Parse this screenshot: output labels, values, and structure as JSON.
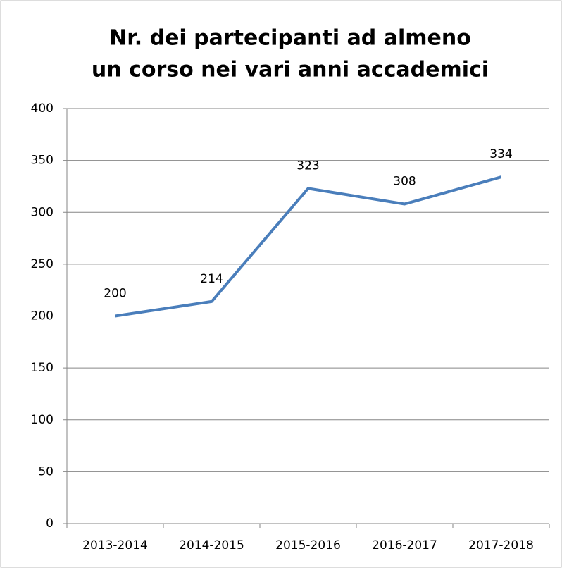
{
  "chart_data": {
    "type": "line",
    "title": [
      "Nr. dei partecipanti ad almeno",
      "un corso nei vari anni accademici"
    ],
    "categories": [
      "2013-2014",
      "2014-2015",
      "2015-2016",
      "2016-2017",
      "2017-2018"
    ],
    "values": [
      200,
      214,
      323,
      308,
      334
    ],
    "color": "#4a7ebb",
    "ylim": [
      0,
      400
    ],
    "yticks": [
      0,
      50,
      100,
      150,
      200,
      250,
      300,
      350,
      400
    ],
    "grid": true
  }
}
